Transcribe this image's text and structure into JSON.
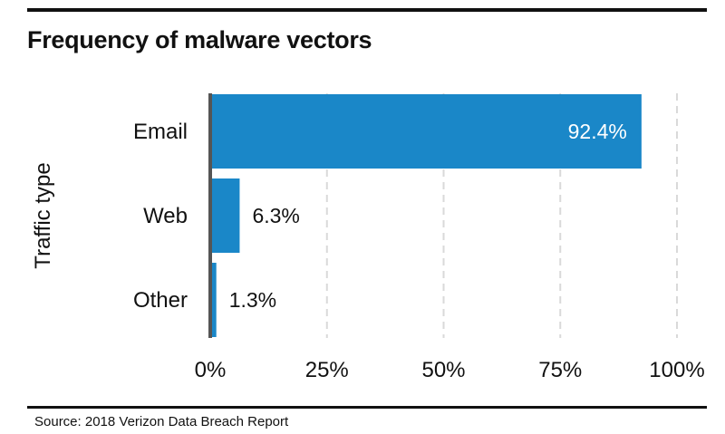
{
  "chart_data": {
    "type": "bar",
    "orientation": "horizontal",
    "title": "Frequency of malware vectors",
    "xlabel": "",
    "ylabel": "Traffic type",
    "categories": [
      "Email",
      "Web",
      "Other"
    ],
    "values": [
      92.4,
      6.3,
      1.3
    ],
    "value_labels": [
      "92.4%",
      "6.3%",
      "1.3%"
    ],
    "xlim": [
      0,
      100
    ],
    "x_ticks": [
      0,
      25,
      50,
      75,
      100
    ],
    "x_tick_labels": [
      "0%",
      "25%",
      "50%",
      "75%",
      "100%"
    ],
    "grid": "vertical dashed",
    "bar_color": "#1a87c8",
    "axis_color": "#555555",
    "grid_color": "#d9d9d9",
    "inside_label_color": "#ffffff"
  },
  "footer": {
    "source": "Source: 2018 Verizon Data Breach Report"
  }
}
